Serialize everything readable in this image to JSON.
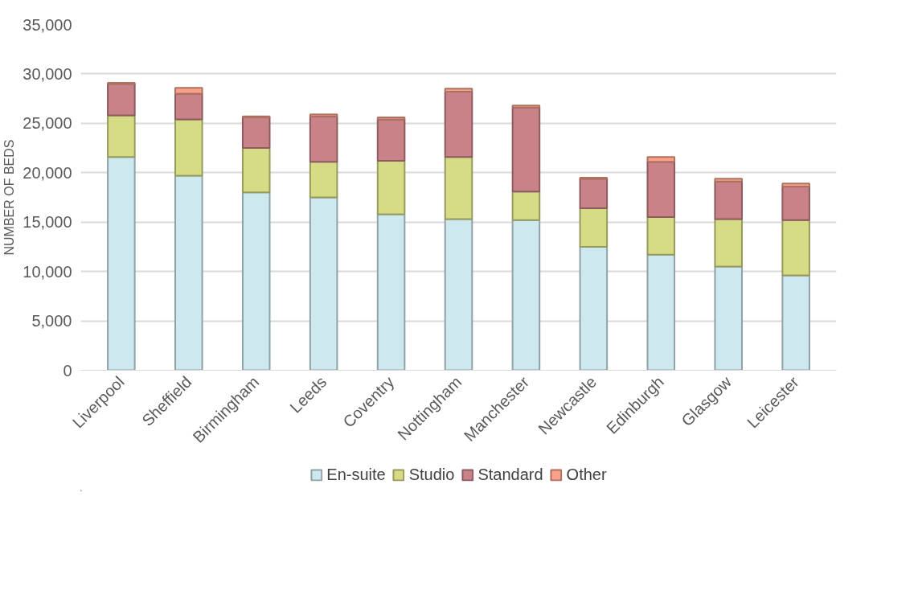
{
  "chart_data": {
    "type": "bar",
    "stacked": true,
    "ylabel": "NUMBER OF BEDS",
    "categories": [
      "Liverpool",
      "Sheffield",
      "Birmingham",
      "Leeds",
      "Coventry",
      "Nottingham",
      "Manchester",
      "Newcastle",
      "Edinburgh",
      "Glasgow",
      "Leicester"
    ],
    "series": [
      {
        "name": "En-suite",
        "color": "#cde8ee",
        "values": [
          21600,
          19700,
          18000,
          17500,
          15800,
          15300,
          15200,
          12500,
          11700,
          10500,
          9600
        ]
      },
      {
        "name": "Studio",
        "color": "#d6dc86",
        "values": [
          4200,
          5700,
          4500,
          3600,
          5400,
          6300,
          2900,
          3900,
          3800,
          4800,
          5600
        ]
      },
      {
        "name": "Standard",
        "color": "#c98388",
        "values": [
          3200,
          2600,
          3100,
          4600,
          4200,
          6600,
          8500,
          3000,
          5600,
          3800,
          3400
        ]
      },
      {
        "name": "Other",
        "color": "#f9a28a",
        "values": [
          100,
          600,
          100,
          200,
          200,
          300,
          200,
          100,
          500,
          300,
          300
        ]
      }
    ],
    "ylim": [
      0,
      35000
    ],
    "yticks": [
      {
        "value": 0,
        "label": "0"
      },
      {
        "value": 5000,
        "label": "5,000"
      },
      {
        "value": 10000,
        "label": "10,000"
      },
      {
        "value": 15000,
        "label": "15,000"
      },
      {
        "value": 20000,
        "label": "20,000"
      },
      {
        "value": 25000,
        "label": "25,000"
      },
      {
        "value": 30000,
        "label": "30,000"
      },
      {
        "value": 35000,
        "label": "35,000"
      }
    ],
    "grid": "y",
    "legend": "bottom"
  }
}
